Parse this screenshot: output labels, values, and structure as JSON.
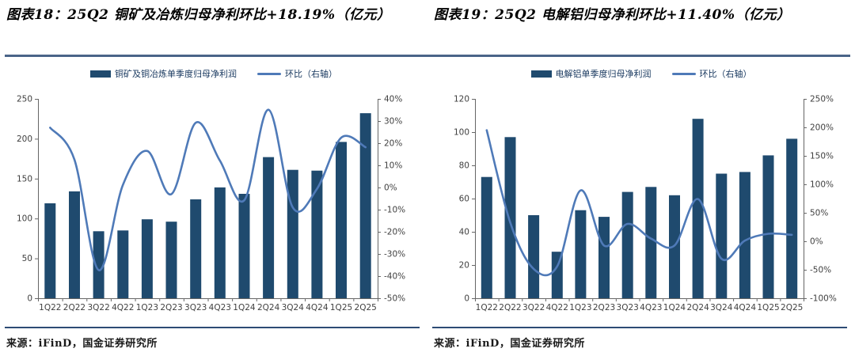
{
  "figures": [
    {
      "title": "图表18：25Q2 铜矿及冶炼归母净利环比+18.19%（亿元）",
      "source": "来源：iFinD，国金证券研究所"
    },
    {
      "title": "图表19：25Q2 电解铝归母净利环比+11.40%（亿元）",
      "source": "来源：iFinD，国金证券研究所"
    }
  ],
  "colors": {
    "bar": "#1f4a6e",
    "line": "#4f7ab8",
    "axis": "#666666",
    "tick_text": "#404040",
    "title_rule": "#4a6488",
    "figure_rule": "#2d4b74"
  },
  "chart_data": [
    {
      "type": "bar",
      "subtype": "bar+line-combo",
      "title": "25Q2 铜矿及冶炼归母净利环比+18.19%（亿元）",
      "categories": [
        "1Q22",
        "2Q22",
        "3Q22",
        "4Q22",
        "1Q23",
        "2Q23",
        "3Q23",
        "4Q23",
        "1Q24",
        "2Q24",
        "3Q24",
        "4Q24",
        "1Q25",
        "2Q25"
      ],
      "series": [
        {
          "name": "铜矿及铜冶炼单季度归母净利润",
          "type": "bar",
          "axis": "left",
          "unit": "亿元",
          "values": [
            119,
            134,
            84,
            85,
            99,
            96,
            124,
            139,
            131,
            177,
            161,
            160,
            196,
            232
          ]
        },
        {
          "name": "环比（右轴）",
          "type": "line",
          "axis": "right",
          "unit": "%",
          "values": [
            27,
            12.6,
            -37.3,
            1.2,
            16.5,
            -3.0,
            29.2,
            12.1,
            -5.8,
            35.1,
            -9.0,
            -0.6,
            22.5,
            18.19
          ]
        }
      ],
      "left_axis": {
        "min": 0,
        "max": 250,
        "step": 50,
        "format": "number"
      },
      "right_axis": {
        "min": -50,
        "max": 40,
        "step": 10,
        "format": "percent"
      },
      "grid": false,
      "legend_position": "top"
    },
    {
      "type": "bar",
      "subtype": "bar+line-combo",
      "title": "25Q2 电解铝归母净利环比+11.40%（亿元）",
      "categories": [
        "1Q22",
        "2Q22",
        "3Q22",
        "4Q22",
        "1Q23",
        "2Q23",
        "3Q23",
        "4Q23",
        "1Q24",
        "2Q24",
        "3Q24",
        "4Q24",
        "1Q25",
        "2Q25"
      ],
      "series": [
        {
          "name": "电解铝单季度归母净利润",
          "type": "bar",
          "axis": "left",
          "unit": "亿元",
          "values": [
            73,
            97,
            50,
            28,
            53,
            49,
            64,
            67,
            62,
            108,
            75,
            76,
            86,
            96
          ]
        },
        {
          "name": "环比（右轴）",
          "type": "line",
          "axis": "right",
          "unit": "%",
          "values": [
            195,
            33,
            -48.5,
            -44,
            89.3,
            -7.5,
            30.6,
            4.7,
            -7.5,
            74.2,
            -30.6,
            1.3,
            13.2,
            11.4
          ]
        }
      ],
      "left_axis": {
        "min": 0,
        "max": 120,
        "step": 20,
        "format": "number"
      },
      "right_axis": {
        "min": -100,
        "max": 250,
        "step": 50,
        "format": "percent"
      },
      "grid": false,
      "legend_position": "top"
    }
  ]
}
